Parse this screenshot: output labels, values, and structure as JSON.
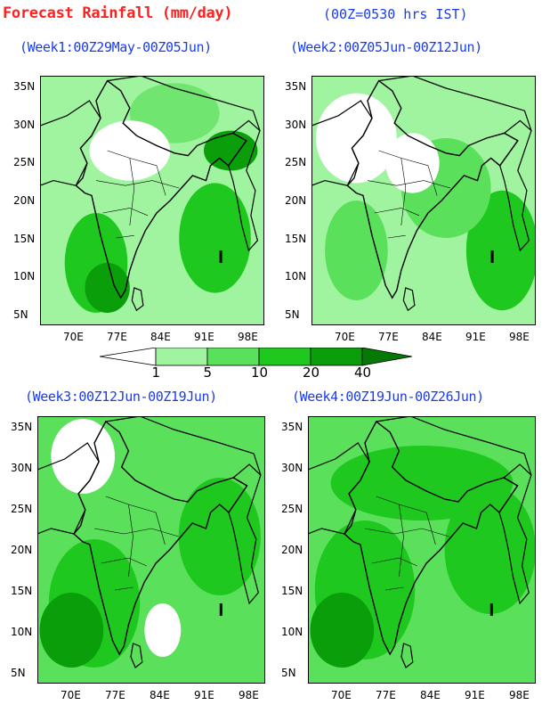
{
  "header": {
    "title": "Forecast Rainfall (mm/day)",
    "time_note": "(00Z=0530 hrs IST)"
  },
  "map": {
    "lon_ticks": [
      "70E",
      "77E",
      "84E",
      "91E",
      "98E"
    ],
    "lat_ticks": [
      "35N",
      "30N",
      "25N",
      "20N",
      "15N",
      "10N",
      "5N"
    ]
  },
  "panels": [
    {
      "title": "(Week1:00Z29May-00Z05Jun)"
    },
    {
      "title": "(Week2:00Z05Jun-00Z12Jun)"
    },
    {
      "title": "(Week3:00Z12Jun-00Z19Jun)"
    },
    {
      "title": "(Week4:00Z19Jun-00Z26Jun)"
    }
  ],
  "legend": {
    "thresholds": [
      "1",
      "5",
      "10",
      "20",
      "40"
    ],
    "colors": [
      "#ffffff",
      "#a0f4a0",
      "#5be05b",
      "#1ec81e",
      "#0a9e0a",
      "#057805"
    ]
  }
}
